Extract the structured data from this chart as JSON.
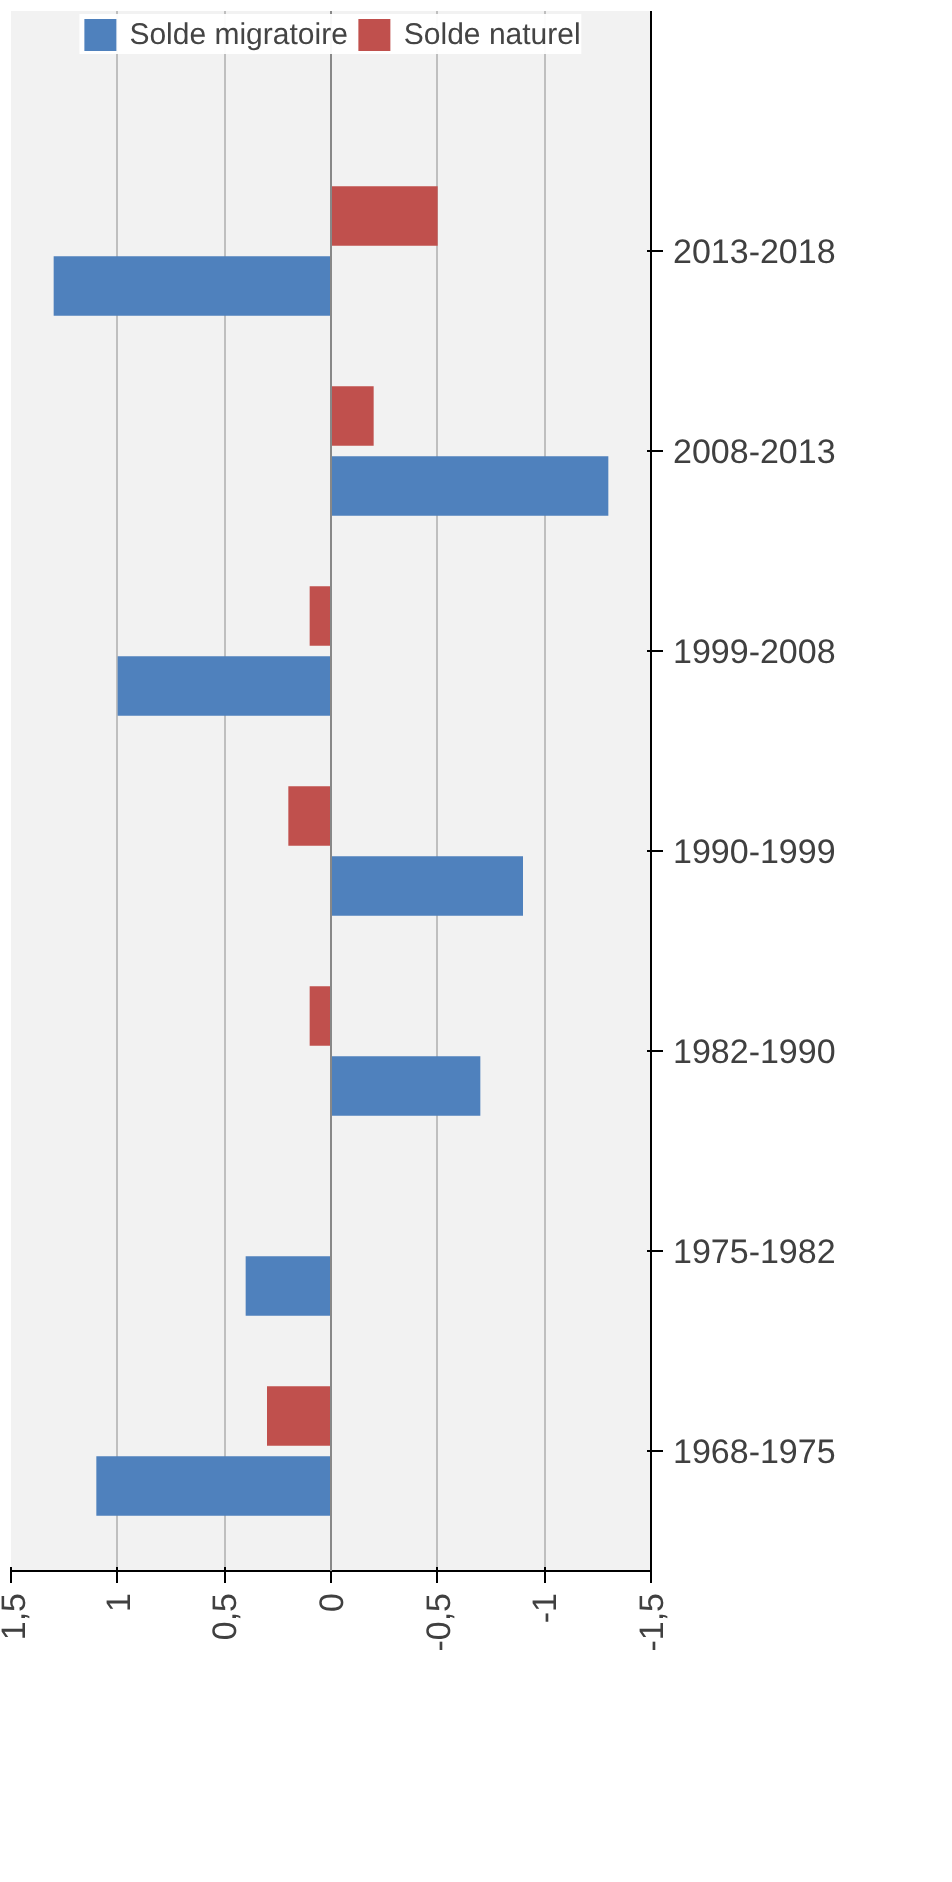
{
  "chart_data": {
    "type": "bar",
    "orientation": "horizontal",
    "categories": [
      "2013-2018",
      "2008-2013",
      "1999-2008",
      "1990-1999",
      "1982-1990",
      "1975-1982",
      "1968-1975"
    ],
    "series": [
      {
        "name": "Solde migratoire",
        "color": "#4f81bd",
        "values": [
          1.3,
          -1.3,
          1.0,
          -0.9,
          -0.7,
          0.4,
          1.1
        ]
      },
      {
        "name": "Solde naturel",
        "color": "#c0504d",
        "values": [
          -0.5,
          -0.2,
          0.1,
          0.2,
          0.1,
          0,
          0.3
        ]
      }
    ],
    "xlim": [
      1.5,
      -1.5
    ],
    "xticks": [
      {
        "value": 1.5,
        "label": "1,5"
      },
      1,
      {
        "value": 0.5,
        "label": "0,5"
      },
      0,
      {
        "value": -0.5,
        "label": "-0,5"
      },
      -1,
      {
        "value": -1.5,
        "label": "-1,5"
      }
    ],
    "grid": "x",
    "legend": "top"
  }
}
